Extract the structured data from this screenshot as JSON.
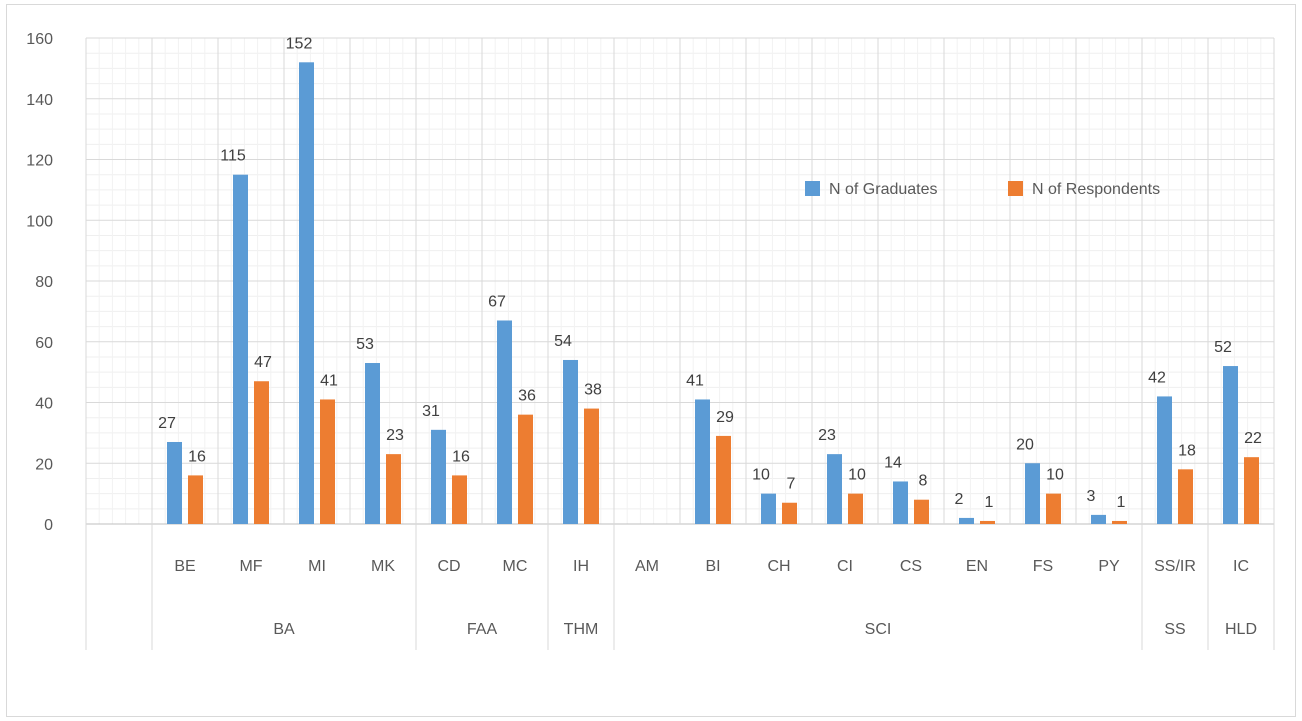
{
  "chart_data": {
    "type": "bar",
    "ylim": [
      0,
      160
    ],
    "yticks": [
      0,
      20,
      40,
      60,
      80,
      100,
      120,
      140,
      160
    ],
    "grid": true,
    "legend_position": "top-right",
    "categories": [
      "",
      "BE",
      "MF",
      "MI",
      "MK",
      "CD",
      "MC",
      "IH",
      "AM",
      "BI",
      "CH",
      "CI",
      "CS",
      "EN",
      "FS",
      "PY",
      "SS/IR",
      "IC"
    ],
    "groups": [
      {
        "label": "",
        "span": 1
      },
      {
        "label": "BA",
        "span": 4
      },
      {
        "label": "FAA",
        "span": 2
      },
      {
        "label": "THM",
        "span": 1
      },
      {
        "label": "SCI",
        "span": 8
      },
      {
        "label": "SS",
        "span": 1
      },
      {
        "label": "HLD",
        "span": 1
      }
    ],
    "series": [
      {
        "name": "N of Graduates",
        "color": "#5b9bd5",
        "values": [
          null,
          27,
          115,
          152,
          53,
          31,
          67,
          54,
          null,
          41,
          10,
          23,
          14,
          2,
          20,
          3,
          42,
          52
        ]
      },
      {
        "name": "N of Respondents",
        "color": "#ed7d31",
        "values": [
          null,
          16,
          47,
          41,
          23,
          16,
          36,
          38,
          null,
          29,
          7,
          10,
          8,
          1,
          10,
          1,
          18,
          22
        ]
      }
    ]
  }
}
